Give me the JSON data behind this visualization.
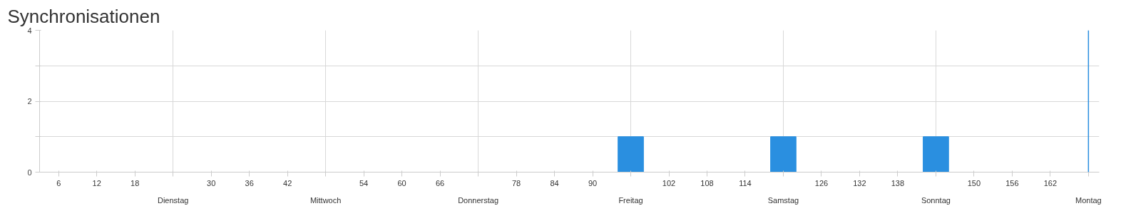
{
  "chart_data": {
    "type": "bar",
    "title": "Synchronisationen",
    "x": [
      96,
      120,
      144
    ],
    "series": [
      {
        "color": "#2a8fe0",
        "values": [
          1,
          1,
          1
        ]
      }
    ],
    "xlim": [
      3,
      169.7
    ],
    "xticks": [
      6,
      12,
      18,
      {
        "value": 24,
        "label": null
      },
      30,
      36,
      42,
      {
        "value": 48,
        "label": null
      },
      54,
      60,
      66,
      {
        "value": 72,
        "label": null
      },
      78,
      84,
      90,
      {
        "value": 96,
        "label": null
      },
      102,
      108,
      114,
      {
        "value": 120,
        "label": null
      },
      126,
      132,
      138,
      {
        "value": 144,
        "label": null
      },
      150,
      156,
      162,
      {
        "value": 168,
        "label": null
      }
    ],
    "annotations": [
      "Dienstag",
      "Mittwoch",
      "Donnerstag",
      "Freitag",
      "Samstag",
      "Sonntag",
      "Montag"
    ],
    "ylim": [
      0,
      4
    ],
    "yticks": [
      0,
      {
        "value": 1,
        "label": null
      },
      2,
      {
        "value": 3,
        "label": null
      },
      4
    ],
    "ref_lines": [
      {
        "axis": "x",
        "value": 168,
        "color": "#2a8fe0"
      }
    ],
    "grid": true
  }
}
